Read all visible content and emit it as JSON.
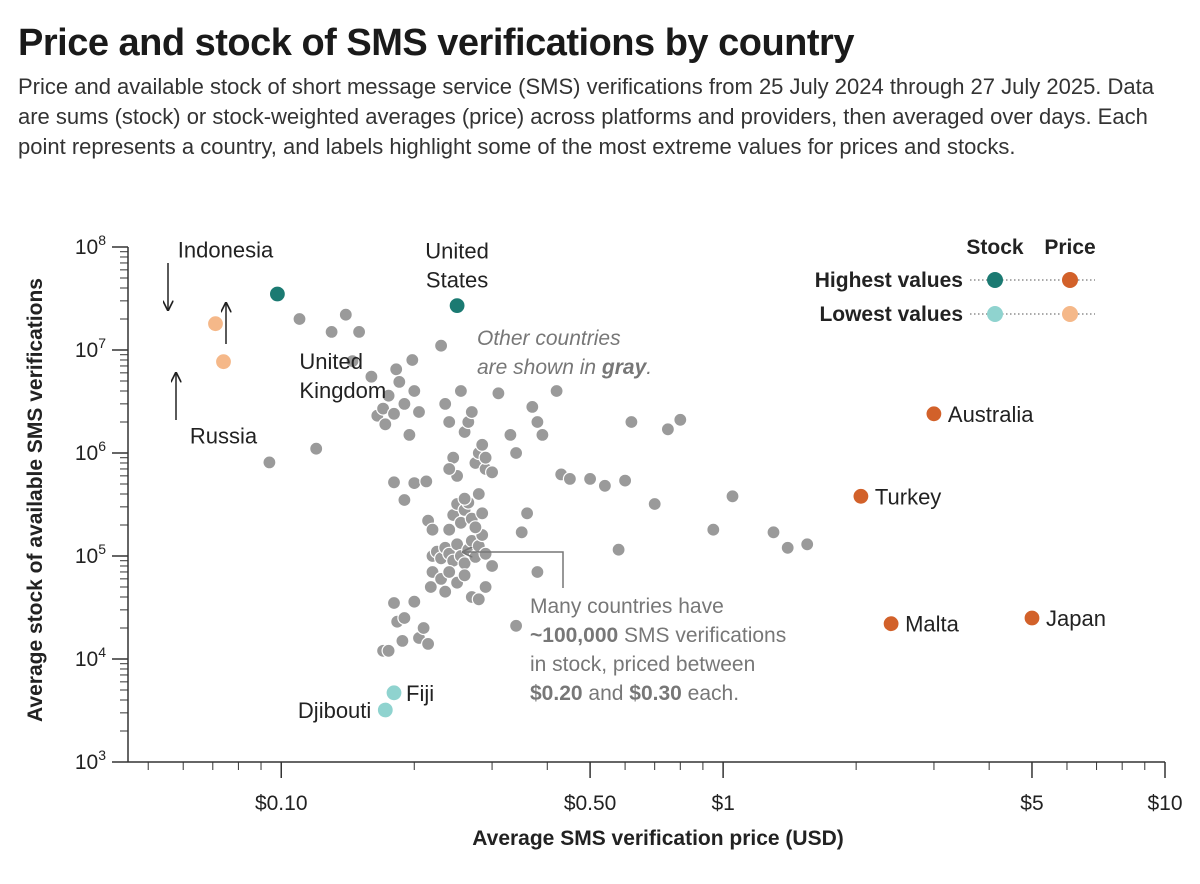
{
  "title": "Price and stock of SMS verifications by country",
  "subtitle": "Price and available stock of short message service (SMS) verifications from 25 July 2024 through 27 July 2025. Data are sums (stock) or stock-weighted averages (price) across platforms and providers, then averaged over days. Each point represents a country, and labels highlight some of the most extreme values for prices and stocks.",
  "colors": {
    "stock_high": "#1b7a72",
    "stock_low": "#8fd3cf",
    "price_high": "#d2612a",
    "price_low": "#f5b889",
    "other": "#9a9a9a",
    "axis": "#333333",
    "annotation": "#777777"
  },
  "legend": {
    "stock_header": "Stock",
    "price_header": "Price",
    "highest_label": "Highest values",
    "lowest_label": "Lowest values"
  },
  "annotations": {
    "gray_line1": "Other countries",
    "gray_line2_prefix": "are shown in ",
    "gray_line2_bold": "gray",
    "gray_line2_suffix": ".",
    "many_line1": "Many countries have",
    "many_line2_bold": "~100,000",
    "many_line2_rest": " SMS verifications",
    "many_line3": "in stock, priced between",
    "many_line4_bold1": "$0.20",
    "many_line4_mid": " and ",
    "many_line4_bold2": "$0.30",
    "many_line4_end": " each."
  },
  "chart_data": {
    "type": "scatter",
    "title": "Price and stock of SMS verifications by country",
    "xlabel": "Average SMS verification price (USD)",
    "ylabel": "Average stock of available SMS verifications",
    "xscale": "log",
    "yscale": "log",
    "xlim": [
      0.045,
      10
    ],
    "ylim": [
      1000,
      100000000
    ],
    "x_ticks": [
      {
        "value": 0.1,
        "label": "$0.10"
      },
      {
        "value": 0.5,
        "label": "$0.50"
      },
      {
        "value": 1,
        "label": "$1"
      },
      {
        "value": 5,
        "label": "$5"
      },
      {
        "value": 10,
        "label": "$10"
      }
    ],
    "y_ticks": [
      {
        "value": 1000,
        "base": "10",
        "exp": "3"
      },
      {
        "value": 10000,
        "base": "10",
        "exp": "4"
      },
      {
        "value": 100000,
        "base": "10",
        "exp": "5"
      },
      {
        "value": 1000000,
        "base": "10",
        "exp": "6"
      },
      {
        "value": 10000000,
        "base": "10",
        "exp": "7"
      },
      {
        "value": 100000000,
        "base": "10",
        "exp": "8"
      }
    ],
    "highlighted": [
      {
        "country": "Indonesia",
        "label_lines": [
          "Indonesia"
        ],
        "price": 0.071,
        "stock": 18000000,
        "category": "price_low"
      },
      {
        "country": "Russia",
        "label_lines": [
          "Russia"
        ],
        "price": 0.074,
        "stock": 7700000,
        "category": "price_low"
      },
      {
        "country": "United Kingdom",
        "label_lines": [
          "United",
          "Kingdom"
        ],
        "price": 0.098,
        "stock": 35000000,
        "category": "stock_high"
      },
      {
        "country": "United States",
        "label_lines": [
          "United",
          "States"
        ],
        "price": 0.25,
        "stock": 27000000,
        "category": "stock_high"
      },
      {
        "country": "Australia",
        "label_lines": [
          "Australia"
        ],
        "price": 3.0,
        "stock": 2400000,
        "category": "price_high"
      },
      {
        "country": "Turkey",
        "label_lines": [
          "Turkey"
        ],
        "price": 2.05,
        "stock": 380000,
        "category": "price_high"
      },
      {
        "country": "Malta",
        "label_lines": [
          "Malta"
        ],
        "price": 2.4,
        "stock": 22000,
        "category": "price_high"
      },
      {
        "country": "Japan",
        "label_lines": [
          "Japan"
        ],
        "price": 5.0,
        "stock": 25000,
        "category": "price_high"
      },
      {
        "country": "Fiji",
        "label_lines": [
          "Fiji"
        ],
        "price": 0.18,
        "stock": 4700,
        "category": "stock_low"
      },
      {
        "country": "Djibouti",
        "label_lines": [
          "Djibouti"
        ],
        "price": 0.172,
        "stock": 3200,
        "category": "stock_low"
      }
    ],
    "other_points": [
      [
        0.094,
        810000
      ],
      [
        0.11,
        20000000
      ],
      [
        0.12,
        1100000
      ],
      [
        0.13,
        15000000
      ],
      [
        0.14,
        22000000
      ],
      [
        0.145,
        7800000
      ],
      [
        0.15,
        15000000
      ],
      [
        0.16,
        5500000
      ],
      [
        0.165,
        2300000
      ],
      [
        0.17,
        2700000
      ],
      [
        0.172,
        1900000
      ],
      [
        0.175,
        3600000
      ],
      [
        0.18,
        2400000
      ],
      [
        0.182,
        6500000
      ],
      [
        0.185,
        4900000
      ],
      [
        0.19,
        3000000
      ],
      [
        0.195,
        1500000
      ],
      [
        0.198,
        8000000
      ],
      [
        0.2,
        4000000
      ],
      [
        0.205,
        2500000
      ],
      [
        0.18,
        520000
      ],
      [
        0.19,
        350000
      ],
      [
        0.2,
        510000
      ],
      [
        0.17,
        12000
      ],
      [
        0.175,
        12000
      ],
      [
        0.18,
        35000
      ],
      [
        0.183,
        23000
      ],
      [
        0.19,
        25000
      ],
      [
        0.188,
        15000
      ],
      [
        0.2,
        36000
      ],
      [
        0.205,
        16000
      ],
      [
        0.21,
        20000
      ],
      [
        0.215,
        14000
      ],
      [
        0.218,
        50000
      ],
      [
        0.22,
        70000
      ],
      [
        0.215,
        220000
      ],
      [
        0.213,
        530000
      ],
      [
        0.23,
        11000000
      ],
      [
        0.235,
        3000000
      ],
      [
        0.24,
        2000000
      ],
      [
        0.245,
        900000
      ],
      [
        0.25,
        600000
      ],
      [
        0.255,
        4000000
      ],
      [
        0.26,
        1600000
      ],
      [
        0.265,
        2000000
      ],
      [
        0.27,
        2500000
      ],
      [
        0.275,
        800000
      ],
      [
        0.28,
        1000000
      ],
      [
        0.285,
        1200000
      ],
      [
        0.29,
        700000
      ],
      [
        0.22,
        100000
      ],
      [
        0.225,
        110000
      ],
      [
        0.23,
        95000
      ],
      [
        0.235,
        120000
      ],
      [
        0.24,
        105000
      ],
      [
        0.245,
        90000
      ],
      [
        0.25,
        130000
      ],
      [
        0.255,
        100000
      ],
      [
        0.26,
        85000
      ],
      [
        0.265,
        115000
      ],
      [
        0.27,
        140000
      ],
      [
        0.275,
        98000
      ],
      [
        0.28,
        125000
      ],
      [
        0.285,
        160000
      ],
      [
        0.29,
        105000
      ],
      [
        0.24,
        180000
      ],
      [
        0.245,
        250000
      ],
      [
        0.25,
        320000
      ],
      [
        0.255,
        210000
      ],
      [
        0.26,
        280000
      ],
      [
        0.265,
        330000
      ],
      [
        0.27,
        230000
      ],
      [
        0.275,
        190000
      ],
      [
        0.28,
        400000
      ],
      [
        0.285,
        260000
      ],
      [
        0.23,
        60000
      ],
      [
        0.235,
        45000
      ],
      [
        0.24,
        70000
      ],
      [
        0.25,
        55000
      ],
      [
        0.26,
        65000
      ],
      [
        0.27,
        40000
      ],
      [
        0.28,
        38000
      ],
      [
        0.29,
        50000
      ],
      [
        0.3,
        80000
      ],
      [
        0.26,
        360000
      ],
      [
        0.24,
        700000
      ],
      [
        0.29,
        900000
      ],
      [
        0.3,
        650000
      ],
      [
        0.31,
        3800000
      ],
      [
        0.33,
        1500000
      ],
      [
        0.34,
        1000000
      ],
      [
        0.35,
        170000
      ],
      [
        0.36,
        260000
      ],
      [
        0.37,
        2800000
      ],
      [
        0.38,
        2000000
      ],
      [
        0.39,
        1500000
      ],
      [
        0.42,
        4000000
      ],
      [
        0.43,
        620000
      ],
      [
        0.45,
        560000
      ],
      [
        0.5,
        560000
      ],
      [
        0.54,
        480000
      ],
      [
        0.6,
        540000
      ],
      [
        0.62,
        2000000
      ],
      [
        0.7,
        320000
      ],
      [
        0.75,
        1700000
      ],
      [
        0.8,
        2100000
      ],
      [
        0.95,
        180000
      ],
      [
        1.05,
        380000
      ],
      [
        1.3,
        170000
      ],
      [
        1.4,
        120000
      ],
      [
        1.55,
        130000
      ],
      [
        0.58,
        115000
      ],
      [
        0.38,
        70000
      ],
      [
        0.34,
        21000
      ],
      [
        0.22,
        180000
      ]
    ]
  }
}
